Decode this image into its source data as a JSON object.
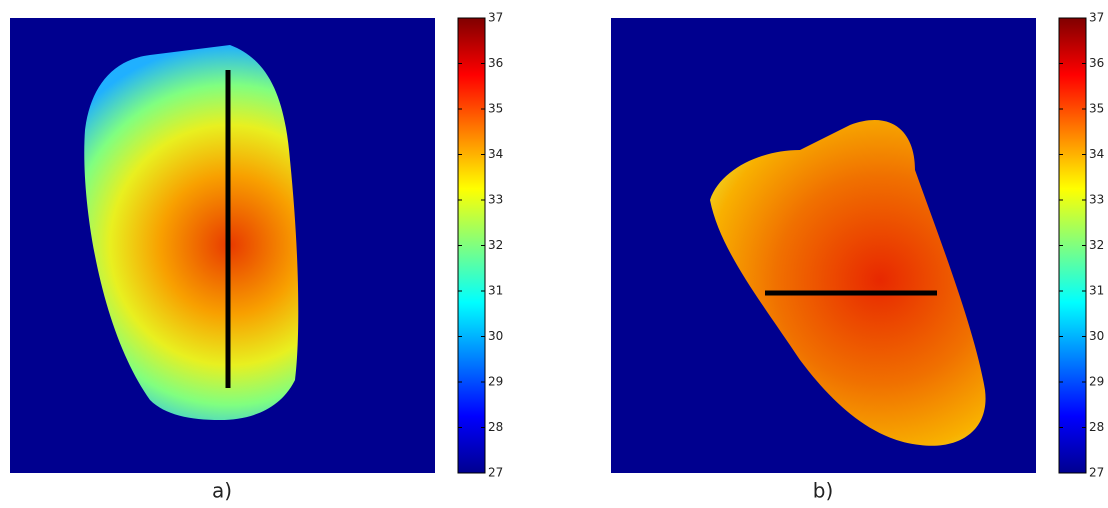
{
  "chart_data": [
    {
      "type": "colorbar",
      "label": "a)",
      "ylim": [
        27,
        37
      ],
      "yticks": [
        27,
        28,
        29,
        30,
        31,
        32,
        33,
        34,
        35,
        36,
        37
      ]
    },
    {
      "type": "colorbar",
      "label": "b)",
      "ylim": [
        27,
        37
      ],
      "yticks": [
        27,
        28,
        29,
        30,
        31,
        32,
        33,
        34,
        35,
        36,
        37
      ]
    }
  ]
}
